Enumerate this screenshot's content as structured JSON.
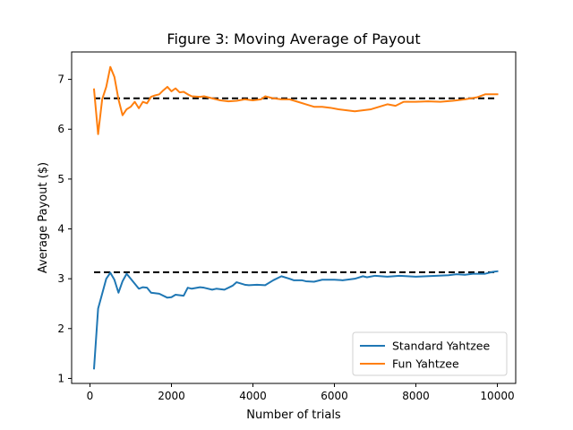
{
  "chart_data": {
    "type": "line",
    "title": "Figure 3: Moving Average of Payout",
    "xlabel": "Number of trials",
    "ylabel": "Average Payout ($)",
    "xlim": [
      -450,
      10450
    ],
    "ylim": [
      0.9,
      7.55
    ],
    "xticks": [
      0,
      2000,
      4000,
      6000,
      8000,
      10000
    ],
    "yticks": [
      1,
      2,
      3,
      4,
      5,
      6,
      7
    ],
    "grid": false,
    "legend_position": "lower-right",
    "series": [
      {
        "name": "Standard Yahtzee",
        "color": "#1f77b4",
        "x": [
          100,
          200,
          300,
          400,
          500,
          600,
          700,
          800,
          900,
          1000,
          1200,
          1300,
          1400,
          1500,
          1700,
          1900,
          2000,
          2100,
          2300,
          2400,
          2500,
          2700,
          2800,
          3000,
          3100,
          3300,
          3500,
          3600,
          3800,
          3900,
          4100,
          4300,
          4500,
          4700,
          4900,
          5000,
          5200,
          5300,
          5500,
          5700,
          6000,
          6200,
          6500,
          6700,
          6800,
          7000,
          7300,
          7600,
          8000,
          8500,
          8800,
          9000,
          9200,
          9400,
          9700,
          9900,
          10000
        ],
        "values": [
          1.2,
          2.4,
          2.7,
          3.0,
          3.12,
          2.98,
          2.72,
          2.95,
          3.1,
          3.0,
          2.8,
          2.83,
          2.82,
          2.72,
          2.7,
          2.62,
          2.63,
          2.68,
          2.66,
          2.82,
          2.8,
          2.83,
          2.82,
          2.78,
          2.8,
          2.78,
          2.86,
          2.93,
          2.88,
          2.87,
          2.88,
          2.87,
          2.97,
          3.05,
          3.0,
          2.97,
          2.97,
          2.95,
          2.94,
          2.98,
          2.98,
          2.97,
          3.0,
          3.05,
          3.03,
          3.06,
          3.04,
          3.06,
          3.04,
          3.06,
          3.07,
          3.09,
          3.08,
          3.1,
          3.1,
          3.14,
          3.15
        ]
      },
      {
        "name": "Fun Yahtzee",
        "color": "#ff7f0e",
        "x": [
          100,
          200,
          300,
          400,
          500,
          600,
          700,
          800,
          900,
          1000,
          1100,
          1200,
          1300,
          1400,
          1500,
          1600,
          1700,
          1800,
          1900,
          2000,
          2100,
          2200,
          2300,
          2400,
          2500,
          2700,
          2800,
          3000,
          3200,
          3400,
          3600,
          3800,
          4000,
          4200,
          4300,
          4500,
          4700,
          4900,
          5100,
          5300,
          5500,
          5700,
          5900,
          6100,
          6300,
          6500,
          6700,
          6900,
          7100,
          7300,
          7500,
          7700,
          8000,
          8300,
          8600,
          8900,
          9200,
          9500,
          9700,
          10000
        ],
        "values": [
          6.8,
          5.9,
          6.6,
          6.85,
          7.25,
          7.05,
          6.6,
          6.28,
          6.4,
          6.45,
          6.55,
          6.42,
          6.55,
          6.52,
          6.65,
          6.68,
          6.7,
          6.78,
          6.85,
          6.76,
          6.82,
          6.74,
          6.75,
          6.7,
          6.66,
          6.65,
          6.66,
          6.62,
          6.58,
          6.56,
          6.57,
          6.6,
          6.58,
          6.6,
          6.66,
          6.62,
          6.6,
          6.6,
          6.55,
          6.5,
          6.45,
          6.45,
          6.43,
          6.4,
          6.38,
          6.36,
          6.38,
          6.4,
          6.45,
          6.5,
          6.47,
          6.55,
          6.55,
          6.56,
          6.55,
          6.57,
          6.6,
          6.64,
          6.7,
          6.7
        ]
      }
    ],
    "reference_lines": [
      {
        "y": 3.13,
        "x_range": [
          100,
          10000
        ],
        "style": "dashed",
        "color": "#000000"
      },
      {
        "y": 6.62,
        "x_range": [
          100,
          10000
        ],
        "style": "dashed",
        "color": "#000000"
      }
    ]
  }
}
